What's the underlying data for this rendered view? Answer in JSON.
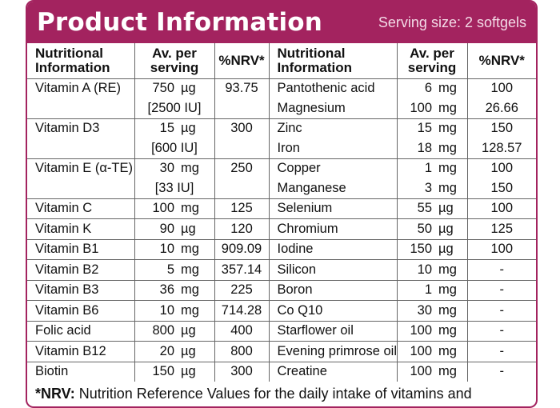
{
  "header": {
    "title": "Product Information",
    "serving": "Serving size: 2 softgels"
  },
  "columns": {
    "left": {
      "name": "Nutritional Information",
      "amount": "Av. per serving",
      "nrv": "%NRV*"
    },
    "right": {
      "name": "Nutritional Information",
      "amount": "Av. per serving",
      "nrv": "%NRV*"
    }
  },
  "left_rows": [
    {
      "name": "Vitamin A (RE)",
      "num": "750",
      "unit": "µg",
      "iu": "[2500 IU]",
      "nrv": "93.75"
    },
    {
      "name": "Vitamin D3",
      "num": "15",
      "unit": "µg",
      "iu": "[600 IU]",
      "nrv": "300"
    },
    {
      "name": "Vitamin E (α-TE)",
      "num": "30",
      "unit": "mg",
      "iu": "[33 IU]",
      "nrv": "250"
    },
    {
      "name": "Vitamin C",
      "num": "100",
      "unit": "mg",
      "nrv": "125"
    },
    {
      "name": "Vitamin K",
      "num": "90",
      "unit": "µg",
      "nrv": "120"
    },
    {
      "name": "Vitamin B1",
      "num": "10",
      "unit": "mg",
      "nrv": "909.09"
    },
    {
      "name": "Vitamin B2",
      "num": "5",
      "unit": "mg",
      "nrv": "357.14"
    },
    {
      "name": "Vitamin B3",
      "num": "36",
      "unit": "mg",
      "nrv": "225"
    },
    {
      "name": "Vitamin B6",
      "num": "10",
      "unit": "mg",
      "nrv": "714.28"
    },
    {
      "name": "Folic acid",
      "num": "800",
      "unit": "µg",
      "nrv": "400"
    },
    {
      "name": "Vitamin B12",
      "num": "20",
      "unit": "µg",
      "nrv": "800"
    },
    {
      "name": "Biotin",
      "num": "150",
      "unit": "µg",
      "nrv": "300"
    }
  ],
  "right_rows": [
    {
      "name": "Pantothenic acid",
      "num": "6",
      "unit": "mg",
      "nrv": "100"
    },
    {
      "name": "Magnesium",
      "num": "100",
      "unit": "mg",
      "nrv": "26.66"
    },
    {
      "name": "Zinc",
      "num": "15",
      "unit": "mg",
      "nrv": "150"
    },
    {
      "name": "Iron",
      "num": "18",
      "unit": "mg",
      "nrv": "128.57"
    },
    {
      "name": "Copper",
      "num": "1",
      "unit": "mg",
      "nrv": "100"
    },
    {
      "name": "Manganese",
      "num": "3",
      "unit": "mg",
      "nrv": "150"
    },
    {
      "name": "Selenium",
      "num": "55",
      "unit": "µg",
      "nrv": "100"
    },
    {
      "name": "Chromium",
      "num": "50",
      "unit": "µg",
      "nrv": "125"
    },
    {
      "name": "Iodine",
      "num": "150",
      "unit": "µg",
      "nrv": "100"
    },
    {
      "name": "Silicon",
      "num": "10",
      "unit": "mg",
      "nrv": "-"
    },
    {
      "name": "Boron",
      "num": "1",
      "unit": "mg",
      "nrv": "-"
    },
    {
      "name": "Co Q10",
      "num": "30",
      "unit": "mg",
      "nrv": "-"
    },
    {
      "name": "Starflower oil",
      "num": "100",
      "unit": "mg",
      "nrv": "-"
    },
    {
      "name": "Evening primrose oil",
      "num": "100",
      "unit": "mg",
      "nrv": "-"
    },
    {
      "name": "Creatine",
      "num": "100",
      "unit": "mg",
      "nrv": "-"
    }
  ],
  "footer": {
    "label": "*NRV:",
    "text": " Nutrition Reference Values for the daily intake of vitamins and"
  },
  "colors": {
    "brand": "#a3235f"
  }
}
